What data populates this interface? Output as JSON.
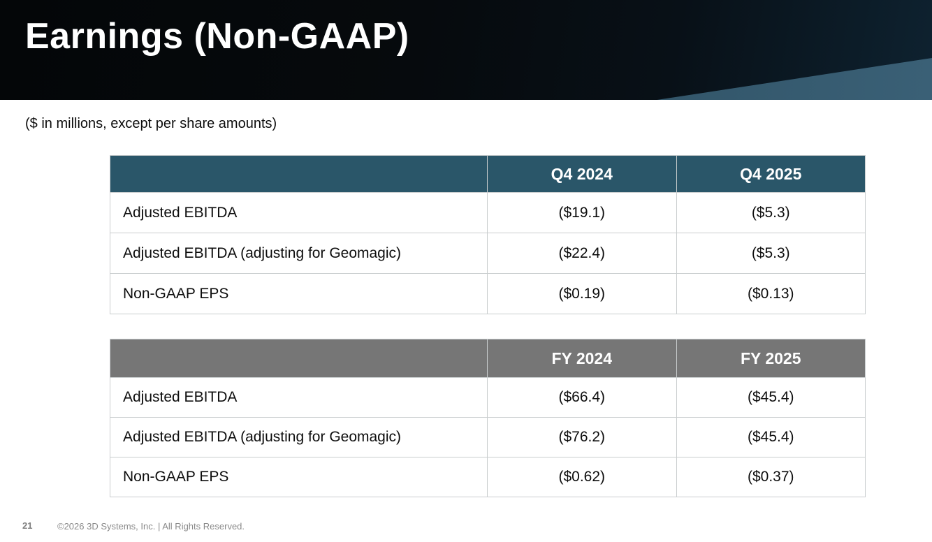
{
  "header": {
    "title": "Earnings (Non-GAAP)"
  },
  "subtitle": "($ in millions, except per share amounts)",
  "tables": [
    {
      "name": "quarterly-results",
      "columns": [
        "",
        "Q4 2024",
        "Q4 2025"
      ],
      "rows": [
        {
          "label": "Adjusted EBITDA",
          "values": [
            "($19.1)",
            "($5.3)"
          ]
        },
        {
          "label": "Adjusted EBITDA (adjusting for Geomagic)",
          "values": [
            "($22.4)",
            "($5.3)"
          ]
        },
        {
          "label": "Non-GAAP EPS",
          "values": [
            "($0.19)",
            "($0.13)"
          ]
        }
      ]
    },
    {
      "name": "full-year-results",
      "columns": [
        "",
        "FY 2024",
        "FY 2025"
      ],
      "rows": [
        {
          "label": "Adjusted EBITDA",
          "values": [
            "($66.4)",
            "($45.4)"
          ]
        },
        {
          "label": "Adjusted EBITDA (adjusting for Geomagic)",
          "values": [
            "($76.2)",
            "($45.4)"
          ]
        },
        {
          "label": "Non-GAAP EPS",
          "values": [
            "($0.62)",
            "($0.37)"
          ]
        }
      ]
    }
  ],
  "footer": {
    "page_number": "21",
    "copyright": "©2026 3D Systems, Inc. | All Rights Reserved."
  },
  "colors": {
    "quarter_header_bg": "#2a5669",
    "fiscal_year_header_bg": "#767676",
    "header_band_bg": "#060a0d",
    "header_accent_teal": "#3a6076",
    "table_border": "#c9cdce"
  }
}
